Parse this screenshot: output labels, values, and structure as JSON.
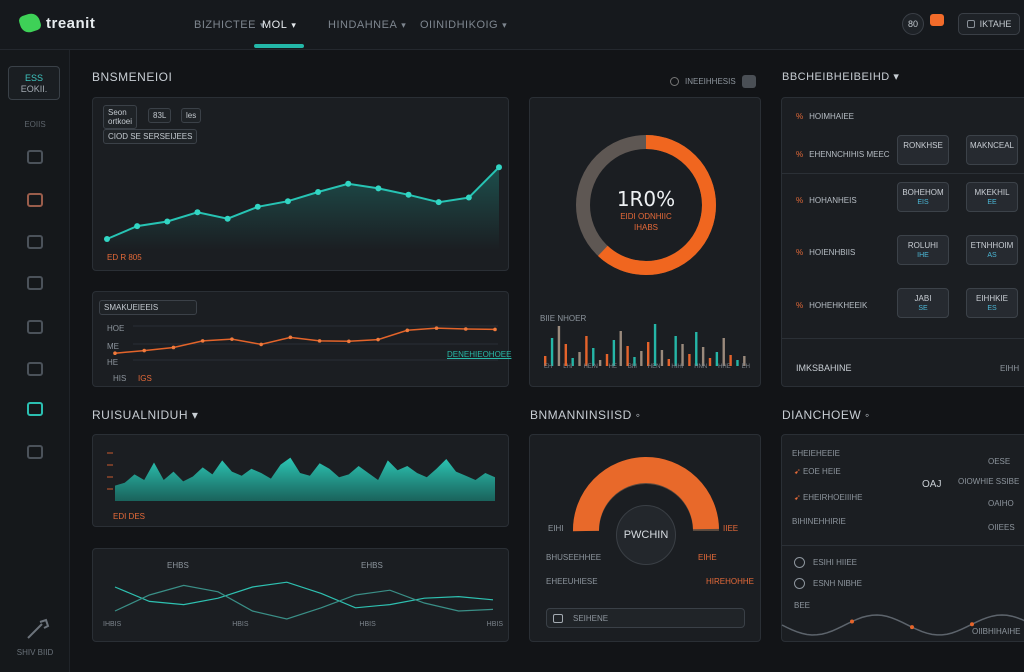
{
  "header": {
    "brand": "treanit",
    "nav": [
      {
        "label": "BIZHICTEE",
        "caret": "▾"
      },
      {
        "label": "MOL",
        "caret": "▾"
      },
      {
        "label": "HINDAHNEA",
        "caret": "▾"
      },
      {
        "label": "OIINIDHIKOIG",
        "caret": "▾"
      }
    ],
    "user_badge": "80",
    "account_label": "IKTAHE"
  },
  "sidebar": {
    "selected_line1": "ESS",
    "selected_line2": "EOKII.",
    "section_label": "EOIIS",
    "footer": "SHIV BIID"
  },
  "section1": {
    "title": "BNSMENEIOI",
    "filter_label": "INEEIHHESIS",
    "card1": {
      "label1": "Seon",
      "label2": "ortkoei",
      "tag1": "83L",
      "tag2": "les",
      "chip": "CIOD SE SERSEIJEES",
      "foot": "ED R 805",
      "values": [
        12,
        26,
        31,
        41,
        34,
        47,
        53,
        63,
        72,
        67,
        60,
        52,
        57,
        90
      ]
    },
    "card2": {
      "title": "SMAKUEIEEIS",
      "axis1": "HOE",
      "axis2": "ME",
      "axis3": "HE",
      "foot1": "HIS",
      "foot2": "IGS",
      "legend": "DENEHIEOHOEE",
      "values": [
        20,
        26,
        33,
        48,
        52,
        40,
        56,
        48,
        47,
        51,
        72,
        77,
        75,
        74
      ]
    }
  },
  "donut": {
    "value": "1R0%",
    "label1": "EIDI ODNHIIC",
    "label2": "IHABS",
    "percent": 0.62,
    "colors": {
      "active": "#f0661f",
      "track": "#5e5753"
    },
    "bars_label": "BIIE NHOER",
    "bars_ticks": [
      "EH",
      "LHI",
      "HEIN",
      "HE",
      "BIII",
      "HEN",
      "HIHI",
      "HNN",
      "HHE",
      "EH"
    ],
    "bars": [
      10,
      28,
      40,
      22,
      8,
      14,
      30,
      18,
      6,
      12,
      26,
      35,
      20,
      9,
      15,
      24,
      42,
      16,
      7,
      30,
      22,
      12,
      34,
      19,
      8,
      14,
      28,
      11,
      6,
      10
    ]
  },
  "right_panel": {
    "title": "BBCHEIBHEIBEIHD",
    "caret": "▾",
    "rows": [
      {
        "label": "HOIMHAIEE",
        "mark": "%",
        "btn1": "",
        "btn2": ""
      },
      {
        "label": "EHENNCHIHIS MEEC",
        "mark": "%",
        "btn1": "RONKHSE",
        "btn2": "MAKNCEAL",
        "btn1_sub": "",
        "btn2_sub": ""
      },
      {
        "label": "HOHANHEIS",
        "mark": "%",
        "btn1": "BOHEHOM",
        "btn2": "MKEKHIL",
        "btn1_sub": "EIS",
        "btn2_sub": "EE"
      },
      {
        "label": "HOIENHBIIS",
        "mark": "%",
        "btn1": "ROLUHI",
        "btn2": "ETNHHOIM",
        "btn1_sub": "IHE",
        "btn2_sub": "AS"
      },
      {
        "label": "HOHEHKHEEIK",
        "mark": "%",
        "btn1": "JABI",
        "btn2": "EIHHKIE",
        "btn1_sub": "SE",
        "btn2_sub": "ES"
      }
    ],
    "footer": "IMKSBAHINE",
    "footer_right": "EIHH"
  },
  "section2": {
    "title": "RUISUALNIDUH",
    "caret": "▾",
    "area_foot": "EDI DES",
    "area_values": [
      22,
      26,
      38,
      30,
      55,
      30,
      42,
      28,
      35,
      48,
      38,
      58,
      42,
      36,
      46,
      40,
      32,
      52,
      62,
      40,
      36,
      54,
      46,
      34,
      38,
      50,
      40,
      30,
      58,
      44,
      50,
      40,
      34,
      46,
      60,
      42,
      36,
      30,
      40,
      34
    ],
    "lines_labels": [
      "IHBIS",
      "HBIS",
      "HBIS",
      "HBIS"
    ],
    "lines_marks": [
      "EHBS",
      "EHBS"
    ],
    "series_a": [
      30,
      48,
      52,
      44,
      30,
      24,
      38,
      56,
      52,
      44,
      42,
      46
    ],
    "series_b": [
      60,
      40,
      28,
      36,
      60,
      70,
      56,
      40,
      34,
      50,
      60,
      58
    ]
  },
  "gauge": {
    "title": "BNMANNINSIISD",
    "caret": "◦",
    "center_label": "PWCHIN",
    "left_tick": "EIHI",
    "right_tick": "IIEE",
    "rows": [
      {
        "left": "BHUSEEHHEE",
        "right": "EIHE"
      },
      {
        "left": "EHEEUHIESE",
        "right": "HIREHOHHE"
      }
    ],
    "percent": 0.55,
    "footer": "SEIHENE"
  },
  "dashboard3": {
    "title": "DIANCHOEW",
    "caret": "◦",
    "rows": [
      {
        "label": "EHEIEHEEIE",
        "value": "OESE"
      },
      {
        "label": "EOE HEIE",
        "value": "OIOWHIE SSIBE"
      },
      {
        "label": "EHEIRHOEIIIHE",
        "value": "OAIHO"
      },
      {
        "label": "BIHINEHHIRIE",
        "value": "OIIEES"
      }
    ],
    "mid_value": "OAJ",
    "user1": "ESIHI HIIEE",
    "user2": "ESNH NIBHE",
    "foot": "BEE",
    "foot_right": "OIIBHIHAIHE"
  }
}
